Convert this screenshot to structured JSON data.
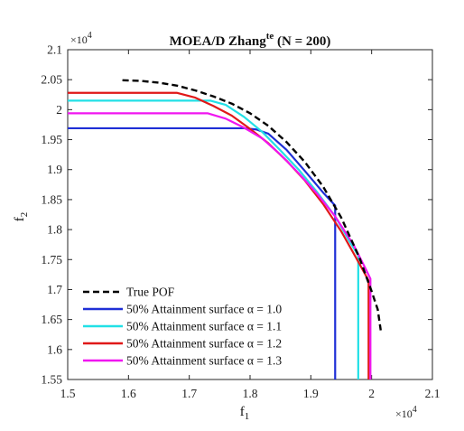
{
  "chart_data": {
    "type": "line",
    "title": "MOEA/D Zhang",
    "title_superscript": "te",
    "title_suffix": " (N = 200)",
    "xlabel": "f",
    "xlabel_subscript": "1",
    "ylabel": "f",
    "ylabel_subscript": "2",
    "x_exponent_base": "×10",
    "x_exponent_power": "4",
    "y_exponent_base": "×10",
    "y_exponent_power": "4",
    "xlim": [
      1.5,
      2.1
    ],
    "ylim": [
      1.55,
      2.1
    ],
    "xticks": [
      1.5,
      1.6,
      1.7,
      1.8,
      1.9,
      2.0,
      2.1
    ],
    "xtick_labels": [
      "1.5",
      "1.6",
      "1.7",
      "1.8",
      "1.9",
      "2",
      "2.1"
    ],
    "yticks": [
      1.55,
      1.6,
      1.65,
      1.7,
      1.75,
      1.8,
      1.85,
      1.9,
      1.95,
      2.0,
      2.05,
      2.1
    ],
    "ytick_labels": [
      "1.55",
      "1.6",
      "1.65",
      "1.7",
      "1.75",
      "1.8",
      "1.85",
      "1.9",
      "1.95",
      "2",
      "2.05",
      "2.1"
    ],
    "grid": false,
    "legend_position": "bottom-left",
    "series": [
      {
        "name": "True POF",
        "color": "#000000",
        "dash": true,
        "points": [
          [
            1.59,
            2.049
          ],
          [
            1.62,
            2.048
          ],
          [
            1.65,
            2.045
          ],
          [
            1.68,
            2.04
          ],
          [
            1.71,
            2.032
          ],
          [
            1.74,
            2.022
          ],
          [
            1.77,
            2.01
          ],
          [
            1.8,
            1.994
          ],
          [
            1.83,
            1.973
          ],
          [
            1.86,
            1.946
          ],
          [
            1.89,
            1.913
          ],
          [
            1.92,
            1.872
          ],
          [
            1.95,
            1.82
          ],
          [
            1.98,
            1.753
          ],
          [
            2.0,
            1.697
          ],
          [
            2.01,
            1.667
          ],
          [
            2.015,
            1.632
          ]
        ]
      },
      {
        "name": "50% Attainment surface α = 1.0",
        "color": "#1f2fd6",
        "dash": false,
        "points": [
          [
            1.5,
            1.969
          ],
          [
            1.79,
            1.969
          ],
          [
            1.81,
            1.967
          ],
          [
            1.83,
            1.96
          ],
          [
            1.86,
            1.933
          ],
          [
            1.89,
            1.898
          ],
          [
            1.92,
            1.862
          ],
          [
            1.94,
            1.84
          ],
          [
            1.94,
            1.55
          ]
        ]
      },
      {
        "name": "50% Attainment surface α = 1.1",
        "color": "#22e0e6",
        "dash": false,
        "points": [
          [
            1.5,
            2.015
          ],
          [
            1.735,
            2.015
          ],
          [
            1.76,
            2.008
          ],
          [
            1.79,
            1.988
          ],
          [
            1.82,
            1.963
          ],
          [
            1.85,
            1.932
          ],
          [
            1.88,
            1.9
          ],
          [
            1.91,
            1.863
          ],
          [
            1.94,
            1.822
          ],
          [
            1.965,
            1.778
          ],
          [
            1.978,
            1.757
          ],
          [
            1.978,
            1.55
          ]
        ]
      },
      {
        "name": "50% Attainment surface α = 1.2",
        "color": "#e01818",
        "dash": false,
        "points": [
          [
            1.5,
            2.028
          ],
          [
            1.68,
            2.028
          ],
          [
            1.71,
            2.02
          ],
          [
            1.74,
            2.006
          ],
          [
            1.77,
            1.99
          ],
          [
            1.8,
            1.968
          ],
          [
            1.83,
            1.944
          ],
          [
            1.86,
            1.915
          ],
          [
            1.89,
            1.882
          ],
          [
            1.92,
            1.843
          ],
          [
            1.95,
            1.797
          ],
          [
            1.975,
            1.752
          ],
          [
            1.995,
            1.715
          ],
          [
            1.995,
            1.55
          ]
        ]
      },
      {
        "name": "50% Attainment surface α = 1.3",
        "color": "#f016f0",
        "dash": false,
        "points": [
          [
            1.5,
            1.994
          ],
          [
            1.73,
            1.994
          ],
          [
            1.76,
            1.985
          ],
          [
            1.79,
            1.97
          ],
          [
            1.82,
            1.952
          ],
          [
            1.85,
            1.925
          ],
          [
            1.88,
            1.894
          ],
          [
            1.91,
            1.86
          ],
          [
            1.94,
            1.822
          ],
          [
            1.97,
            1.775
          ],
          [
            1.99,
            1.735
          ],
          [
            1.998,
            1.718
          ],
          [
            1.998,
            1.55
          ]
        ]
      }
    ]
  }
}
